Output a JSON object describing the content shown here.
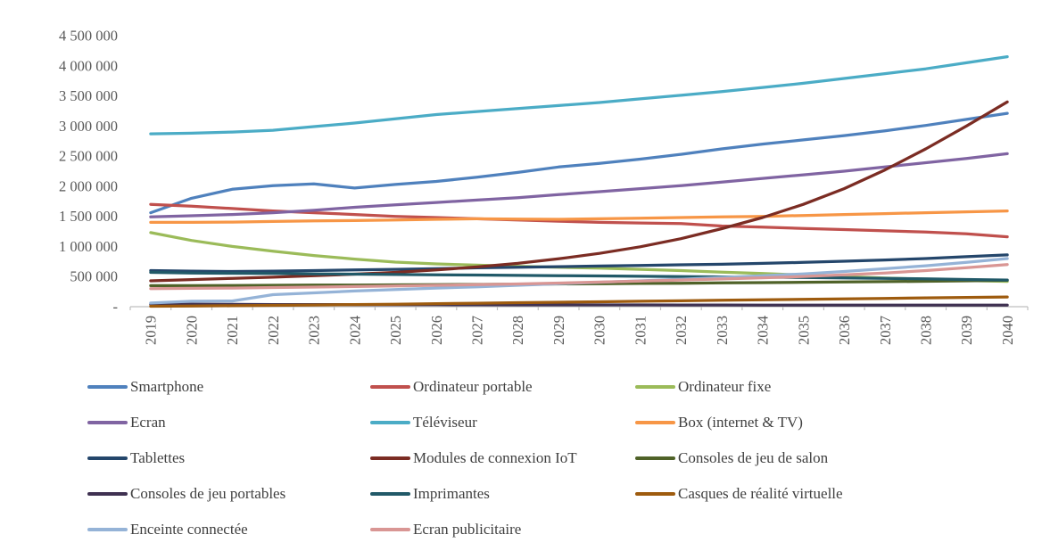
{
  "chart_data": {
    "type": "line",
    "title": "",
    "xlabel": "",
    "ylabel": "",
    "grid": false,
    "legend_position": "bottom",
    "x_tick_labels": [
      "2019",
      "2020",
      "2021",
      "2022",
      "2023",
      "2024",
      "2025",
      "2026",
      "2027",
      "2028",
      "2029",
      "2030",
      "2031",
      "2032",
      "2033",
      "2034",
      "2035",
      "2036",
      "2037",
      "2038",
      "2039",
      "2040"
    ],
    "y_axis": {
      "min": 0,
      "max": 4500000,
      "tick_step": 500000,
      "tick_values": [
        0,
        500000,
        1000000,
        1500000,
        2000000,
        2500000,
        3000000,
        3500000,
        4000000,
        4500000
      ],
      "tick_labels": [
        "-",
        "500 000",
        "1 000 000",
        "1 500 000",
        "2 000 000",
        "2 500 000",
        "3 000 000",
        "3 500 000",
        "4 000 000",
        "4 500 000"
      ]
    },
    "series": [
      {
        "name": "Smartphone",
        "color": "#4F81BD",
        "values": [
          1560000,
          1800000,
          1950000,
          2010000,
          2040000,
          1970000,
          2030000,
          2080000,
          2150000,
          2230000,
          2320000,
          2380000,
          2450000,
          2530000,
          2620000,
          2700000,
          2770000,
          2840000,
          2920000,
          3010000,
          3110000,
          3210000
        ]
      },
      {
        "name": "Ordinateur portable",
        "color": "#C0504D",
        "values": [
          1700000,
          1670000,
          1630000,
          1590000,
          1560000,
          1530000,
          1500000,
          1480000,
          1460000,
          1440000,
          1420000,
          1400000,
          1390000,
          1380000,
          1340000,
          1320000,
          1300000,
          1280000,
          1260000,
          1240000,
          1210000,
          1160000
        ]
      },
      {
        "name": "Ordinateur fixe",
        "color": "#9BBB59",
        "values": [
          1230000,
          1100000,
          1000000,
          920000,
          850000,
          790000,
          740000,
          710000,
          690000,
          670000,
          655000,
          640000,
          620000,
          600000,
          575000,
          550000,
          525000,
          500000,
          475000,
          455000,
          435000,
          420000
        ]
      },
      {
        "name": "Ecran",
        "color": "#8064A2",
        "values": [
          1490000,
          1510000,
          1530000,
          1560000,
          1600000,
          1650000,
          1690000,
          1730000,
          1770000,
          1810000,
          1860000,
          1910000,
          1960000,
          2010000,
          2070000,
          2130000,
          2190000,
          2250000,
          2320000,
          2390000,
          2460000,
          2540000
        ]
      },
      {
        "name": "Téléviseur",
        "color": "#4BACC6",
        "values": [
          2870000,
          2880000,
          2900000,
          2930000,
          2990000,
          3050000,
          3120000,
          3190000,
          3240000,
          3290000,
          3340000,
          3390000,
          3450000,
          3510000,
          3570000,
          3640000,
          3710000,
          3790000,
          3870000,
          3950000,
          4050000,
          4150000
        ]
      },
      {
        "name": "Box (internet & TV)",
        "color": "#F79646",
        "values": [
          1400000,
          1400000,
          1405000,
          1415000,
          1425000,
          1430000,
          1440000,
          1450000,
          1460000,
          1455000,
          1450000,
          1460000,
          1470000,
          1480000,
          1490000,
          1500000,
          1515000,
          1530000,
          1545000,
          1560000,
          1575000,
          1590000
        ]
      },
      {
        "name": "Tablettes",
        "color": "#24466B",
        "values": [
          600000,
          590000,
          585000,
          590000,
          600000,
          610000,
          620000,
          630000,
          645000,
          655000,
          665000,
          675000,
          685000,
          695000,
          705000,
          720000,
          735000,
          755000,
          775000,
          800000,
          830000,
          860000
        ]
      },
      {
        "name": "Modules de connexion IoT",
        "color": "#7B2C23",
        "values": [
          430000,
          450000,
          470000,
          490000,
          515000,
          540000,
          570000,
          610000,
          660000,
          720000,
          795000,
          885000,
          995000,
          1130000,
          1295000,
          1480000,
          1700000,
          1960000,
          2270000,
          2620000,
          3000000,
          3400000
        ]
      },
      {
        "name": "Consoles de jeu de salon",
        "color": "#4F6228",
        "values": [
          350000,
          350000,
          352000,
          355000,
          358000,
          360000,
          363000,
          366000,
          370000,
          374000,
          378000,
          382000,
          386000,
          390000,
          395000,
          400000,
          405000,
          410000,
          416000,
          422000,
          430000,
          438000
        ]
      },
      {
        "name": "Consoles de jeu portables",
        "color": "#3F3151",
        "values": [
          42000,
          40000,
          38000,
          36000,
          35000,
          34000,
          33000,
          32000,
          31000,
          30000,
          30000,
          29000,
          29000,
          28000,
          28000,
          27000,
          27000,
          26000,
          26000,
          25000,
          25000,
          25000
        ]
      },
      {
        "name": "Imprimantes",
        "color": "#215968",
        "values": [
          570000,
          560000,
          555000,
          550000,
          545000,
          540000,
          535000,
          530000,
          525000,
          520000,
          515000,
          510000,
          505000,
          500000,
          495000,
          490000,
          485000,
          478000,
          470000,
          462000,
          452000,
          442000
        ]
      },
      {
        "name": "Casques de réalité virtuelle",
        "color": "#9E5B0E",
        "values": [
          8000,
          12000,
          16000,
          22000,
          28000,
          35000,
          42000,
          50000,
          58000,
          66000,
          74000,
          82000,
          90000,
          98000,
          106000,
          114000,
          122000,
          130000,
          138000,
          146000,
          154000,
          162000
        ]
      },
      {
        "name": "Enceinte connectée",
        "color": "#95B3D7",
        "values": [
          60000,
          90000,
          95000,
          200000,
          230000,
          260000,
          285000,
          310000,
          330000,
          355000,
          380000,
          405000,
          430000,
          455000,
          485000,
          515000,
          545000,
          585000,
          630000,
          680000,
          735000,
          800000
        ]
      },
      {
        "name": "Ecran publicitaire",
        "color": "#D99694",
        "values": [
          300000,
          305000,
          310000,
          318000,
          325000,
          335000,
          345000,
          355000,
          365000,
          378000,
          392000,
          408000,
          425000,
          442000,
          460000,
          480000,
          502000,
          528000,
          560000,
          600000,
          648000,
          700000
        ]
      }
    ]
  },
  "styles": {
    "background": "#FFFFFF",
    "axis_text_color": "#595959",
    "axis_line_color": "#BFBFBF",
    "legend_text_color": "#404040"
  }
}
